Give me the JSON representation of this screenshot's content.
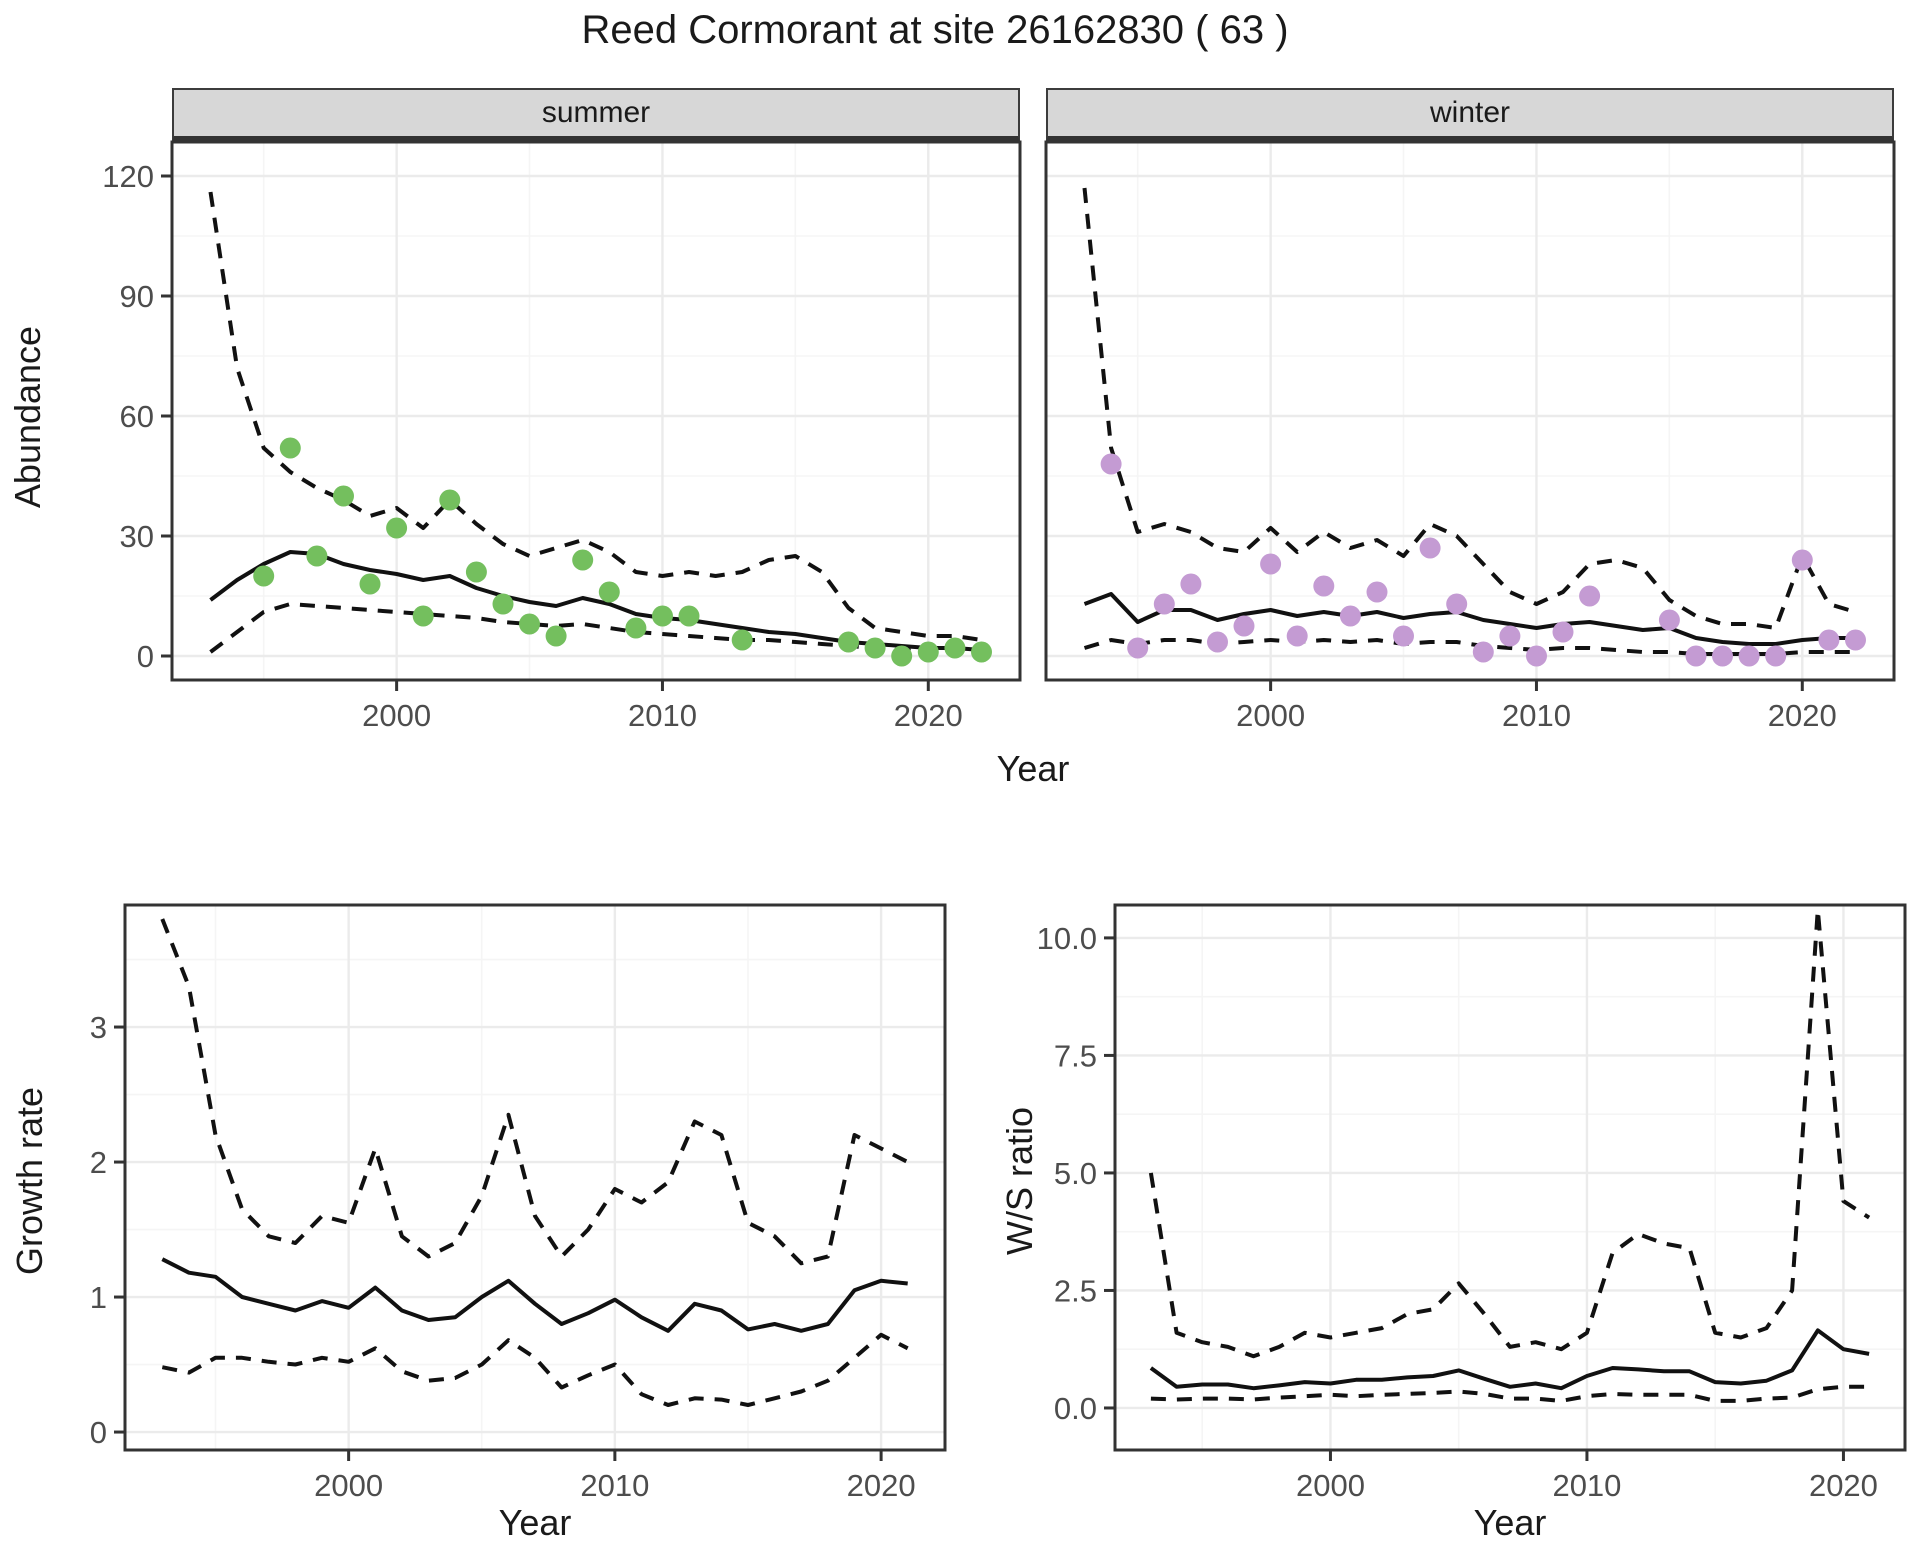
{
  "title": "Reed Cormorant at site 26162830 ( 63 )",
  "top_row": {
    "ylabel": "Abundance",
    "xlabel": "Year",
    "facets": [
      "summer",
      "winter"
    ]
  },
  "bottom_left": {
    "ylabel": "Growth rate",
    "xlabel": "Year"
  },
  "bottom_right": {
    "ylabel": "W/S ratio",
    "xlabel": "Year"
  },
  "colors": {
    "summer_points": "#74BF5E",
    "winter_points": "#C49BD3",
    "line": "#111111",
    "grid_major": "#EBEBEB",
    "grid_minor": "#F5F5F5",
    "panel_border": "#333333",
    "tick_mark": "#333333",
    "tick_text": "#4D4D4D",
    "strip_bg": "#D7D7D7"
  },
  "chart_data": [
    {
      "id": "abundance-summer",
      "type": "line",
      "facet": "summer",
      "ylabel": "Abundance",
      "xlabel": "Year",
      "xlim": [
        1991.55,
        2023.45
      ],
      "ylim": [
        -6,
        128.5
      ],
      "x_ticks": {
        "values": [
          2000,
          2010,
          2020
        ],
        "labels": [
          "2000",
          "2010",
          "2020"
        ],
        "minor": [
          1995,
          2005,
          2015
        ]
      },
      "y_ticks": {
        "values": [
          0,
          30,
          60,
          90,
          120
        ],
        "labels": [
          "0",
          "30",
          "60",
          "90",
          "120"
        ],
        "minor": [
          15,
          45,
          75,
          105
        ]
      },
      "show_y_tick_labels": true,
      "x": [
        1993,
        1994,
        1995,
        1996,
        1997,
        1998,
        1999,
        2000,
        2001,
        2002,
        2003,
        2004,
        2005,
        2006,
        2007,
        2008,
        2009,
        2010,
        2011,
        2012,
        2013,
        2014,
        2015,
        2016,
        2017,
        2018,
        2019,
        2020,
        2021,
        2022
      ],
      "series": [
        {
          "name": "upper_ci",
          "style": "dashed",
          "values": [
            116,
            72,
            52,
            46,
            42,
            39,
            35,
            37,
            32,
            39,
            33,
            28,
            25,
            27,
            29,
            26,
            21,
            20,
            21,
            20,
            21,
            24,
            25,
            21,
            12,
            7,
            6,
            5,
            5,
            4
          ]
        },
        {
          "name": "lower_ci",
          "style": "dashed",
          "values": [
            1,
            6,
            11,
            13,
            12.5,
            12,
            11.5,
            11,
            10.5,
            10,
            9.5,
            8.5,
            8,
            7.5,
            8,
            7,
            6,
            5.5,
            5,
            4.5,
            4,
            4,
            3.5,
            3,
            2.5,
            2,
            1.5,
            1,
            1,
            1
          ]
        },
        {
          "name": "median",
          "style": "solid",
          "values": [
            14,
            19,
            23,
            26,
            25.5,
            23,
            21.5,
            20.5,
            19,
            20,
            17,
            15,
            13.5,
            12.5,
            14.5,
            13,
            10.5,
            9.5,
            9,
            8,
            7,
            6,
            5.5,
            4.5,
            3.5,
            3,
            2.5,
            2,
            2,
            1.5
          ]
        }
      ],
      "points": {
        "name": "observed_counts",
        "color_key": "summer_points",
        "data": [
          [
            1995,
            20
          ],
          [
            1996,
            52
          ],
          [
            1997,
            25
          ],
          [
            1998,
            40
          ],
          [
            1999,
            18
          ],
          [
            2000,
            32
          ],
          [
            2001,
            10
          ],
          [
            2002,
            39
          ],
          [
            2003,
            21
          ],
          [
            2004,
            13
          ],
          [
            2005,
            8
          ],
          [
            2006,
            5
          ],
          [
            2007,
            24
          ],
          [
            2008,
            16
          ],
          [
            2009,
            7
          ],
          [
            2010,
            10
          ],
          [
            2011,
            10
          ],
          [
            2013,
            4
          ],
          [
            2017,
            3.5
          ],
          [
            2018,
            2
          ],
          [
            2019,
            0
          ],
          [
            2020,
            1
          ],
          [
            2021,
            2
          ],
          [
            2022,
            1
          ]
        ]
      }
    },
    {
      "id": "abundance-winter",
      "type": "line",
      "facet": "winter",
      "ylabel": "Abundance",
      "xlabel": "Year",
      "xlim": [
        1991.55,
        2023.45
      ],
      "ylim": [
        -6,
        128.5
      ],
      "x_ticks": {
        "values": [
          2000,
          2010,
          2020
        ],
        "labels": [
          "2000",
          "2010",
          "2020"
        ],
        "minor": [
          1995,
          2005,
          2015
        ]
      },
      "y_ticks": {
        "values": [
          0,
          30,
          60,
          90,
          120
        ],
        "labels": [
          "0",
          "30",
          "60",
          "90",
          "120"
        ],
        "minor": [
          15,
          45,
          75,
          105
        ]
      },
      "show_y_tick_labels": false,
      "x": [
        1993,
        1994,
        1995,
        1996,
        1997,
        1998,
        1999,
        2000,
        2001,
        2002,
        2003,
        2004,
        2005,
        2006,
        2007,
        2008,
        2009,
        2010,
        2011,
        2012,
        2013,
        2014,
        2015,
        2016,
        2017,
        2018,
        2019,
        2020,
        2021,
        2022
      ],
      "series": [
        {
          "name": "upper_ci",
          "style": "dashed",
          "values": [
            117,
            52,
            31,
            33,
            31,
            27,
            26,
            32,
            26,
            31,
            27,
            29,
            25,
            33,
            30,
            23,
            16,
            13,
            16,
            23,
            24,
            22,
            14,
            10,
            8,
            8,
            7,
            25,
            13,
            11
          ]
        },
        {
          "name": "lower_ci",
          "style": "dashed",
          "values": [
            2,
            4,
            3,
            4,
            4,
            3,
            3.5,
            4,
            3.5,
            4,
            3.5,
            4,
            3,
            3.5,
            3.5,
            2.5,
            2,
            1.5,
            2,
            2,
            1.5,
            1,
            1,
            0.5,
            0.5,
            0.5,
            0.5,
            1,
            1,
            1
          ]
        },
        {
          "name": "median",
          "style": "solid",
          "values": [
            13,
            15.5,
            8.5,
            11.5,
            11.5,
            9,
            10.5,
            11.5,
            10,
            11,
            10,
            11,
            9.5,
            10.5,
            11,
            9,
            8,
            7,
            8,
            8.5,
            7.5,
            6.5,
            7,
            4.5,
            3.5,
            3,
            3,
            4,
            4.5,
            4.5
          ]
        }
      ],
      "points": {
        "name": "observed_counts",
        "color_key": "winter_points",
        "data": [
          [
            1994,
            48
          ],
          [
            1995,
            2
          ],
          [
            1996,
            13
          ],
          [
            1997,
            18
          ],
          [
            1998,
            3.5
          ],
          [
            1999,
            7.5
          ],
          [
            2000,
            23
          ],
          [
            2001,
            5
          ],
          [
            2002,
            17.5
          ],
          [
            2003,
            10
          ],
          [
            2004,
            16
          ],
          [
            2005,
            5
          ],
          [
            2006,
            27
          ],
          [
            2007,
            13
          ],
          [
            2008,
            1
          ],
          [
            2009,
            5
          ],
          [
            2010,
            0
          ],
          [
            2011,
            6
          ],
          [
            2012,
            15
          ],
          [
            2015,
            9
          ],
          [
            2016,
            0
          ],
          [
            2017,
            0
          ],
          [
            2018,
            0
          ],
          [
            2019,
            0
          ],
          [
            2020,
            24
          ],
          [
            2021,
            4
          ],
          [
            2022,
            4
          ]
        ]
      }
    },
    {
      "id": "growth-rate",
      "type": "line",
      "facet": null,
      "ylabel": "Growth rate",
      "xlabel": "Year",
      "xlim": [
        1991.6,
        2022.4
      ],
      "ylim": [
        -0.133,
        3.904
      ],
      "x_ticks": {
        "values": [
          2000,
          2010,
          2020
        ],
        "labels": [
          "2000",
          "2010",
          "2020"
        ],
        "minor": [
          1995,
          2005,
          2015
        ]
      },
      "y_ticks": {
        "values": [
          0,
          1,
          2,
          3
        ],
        "labels": [
          "0",
          "1",
          "2",
          "3"
        ],
        "minor": [
          0.5,
          1.5,
          2.5,
          3.5
        ]
      },
      "show_y_tick_labels": true,
      "x": [
        1993,
        1994,
        1995,
        1996,
        1997,
        1998,
        1999,
        2000,
        2001,
        2002,
        2003,
        2004,
        2005,
        2006,
        2007,
        2008,
        2009,
        2010,
        2011,
        2012,
        2013,
        2014,
        2015,
        2016,
        2017,
        2018,
        2019,
        2020,
        2021
      ],
      "series": [
        {
          "name": "upper_ci",
          "style": "dashed",
          "values": [
            3.8,
            3.3,
            2.2,
            1.65,
            1.45,
            1.4,
            1.6,
            1.55,
            2.1,
            1.45,
            1.3,
            1.4,
            1.75,
            2.35,
            1.6,
            1.3,
            1.5,
            1.8,
            1.7,
            1.85,
            2.3,
            2.2,
            1.55,
            1.45,
            1.25,
            1.3,
            2.2,
            2.1,
            2.0
          ]
        },
        {
          "name": "lower_ci",
          "style": "dashed",
          "values": [
            0.48,
            0.44,
            0.55,
            0.55,
            0.52,
            0.5,
            0.55,
            0.52,
            0.62,
            0.45,
            0.38,
            0.4,
            0.5,
            0.68,
            0.55,
            0.33,
            0.42,
            0.5,
            0.28,
            0.2,
            0.25,
            0.24,
            0.2,
            0.25,
            0.3,
            0.38,
            0.55,
            0.72,
            0.62
          ]
        },
        {
          "name": "median",
          "style": "solid",
          "values": [
            1.28,
            1.18,
            1.15,
            1.0,
            0.95,
            0.9,
            0.97,
            0.92,
            1.07,
            0.9,
            0.83,
            0.85,
            1.0,
            1.12,
            0.95,
            0.8,
            0.88,
            0.98,
            0.85,
            0.75,
            0.95,
            0.9,
            0.76,
            0.8,
            0.75,
            0.8,
            1.05,
            1.12,
            1.1
          ]
        }
      ],
      "points": null
    },
    {
      "id": "ws-ratio",
      "type": "line",
      "facet": null,
      "ylabel": "W/S ratio",
      "xlabel": "Year",
      "xlim": [
        1991.6,
        2022.4
      ],
      "ylim": [
        -0.894,
        10.7
      ],
      "x_ticks": {
        "values": [
          2000,
          2010,
          2020
        ],
        "labels": [
          "2000",
          "2010",
          "2020"
        ],
        "minor": [
          1995,
          2005,
          2015
        ]
      },
      "y_ticks": {
        "values": [
          0,
          2.5,
          5,
          7.5,
          10
        ],
        "labels": [
          "0.0",
          "2.5",
          "5.0",
          "7.5",
          "10.0"
        ],
        "minor": [
          1.25,
          3.75,
          6.25,
          8.75
        ]
      },
      "show_y_tick_labels": true,
      "x": [
        1993,
        1994,
        1995,
        1996,
        1997,
        1998,
        1999,
        2000,
        2001,
        2002,
        2003,
        2004,
        2005,
        2006,
        2007,
        2008,
        2009,
        2010,
        2011,
        2012,
        2013,
        2014,
        2015,
        2016,
        2017,
        2018,
        2019,
        2020,
        2021
      ],
      "series": [
        {
          "name": "upper_ci",
          "style": "dashed",
          "values": [
            5.0,
            1.6,
            1.4,
            1.3,
            1.1,
            1.3,
            1.6,
            1.5,
            1.6,
            1.7,
            2.0,
            2.1,
            2.65,
            2.0,
            1.3,
            1.4,
            1.25,
            1.6,
            3.3,
            3.7,
            3.5,
            3.4,
            1.6,
            1.5,
            1.7,
            2.5,
            10.6,
            4.4,
            4.05
          ]
        },
        {
          "name": "lower_ci",
          "style": "dashed",
          "values": [
            0.2,
            0.18,
            0.2,
            0.2,
            0.18,
            0.22,
            0.25,
            0.28,
            0.25,
            0.28,
            0.3,
            0.32,
            0.35,
            0.3,
            0.2,
            0.2,
            0.15,
            0.25,
            0.3,
            0.28,
            0.28,
            0.28,
            0.15,
            0.15,
            0.2,
            0.22,
            0.4,
            0.45,
            0.45
          ]
        },
        {
          "name": "median",
          "style": "solid",
          "values": [
            0.85,
            0.45,
            0.5,
            0.5,
            0.42,
            0.48,
            0.55,
            0.52,
            0.6,
            0.6,
            0.65,
            0.68,
            0.8,
            0.62,
            0.45,
            0.52,
            0.42,
            0.68,
            0.85,
            0.82,
            0.78,
            0.78,
            0.55,
            0.52,
            0.58,
            0.8,
            1.65,
            1.25,
            1.15
          ]
        }
      ],
      "points": null
    }
  ]
}
